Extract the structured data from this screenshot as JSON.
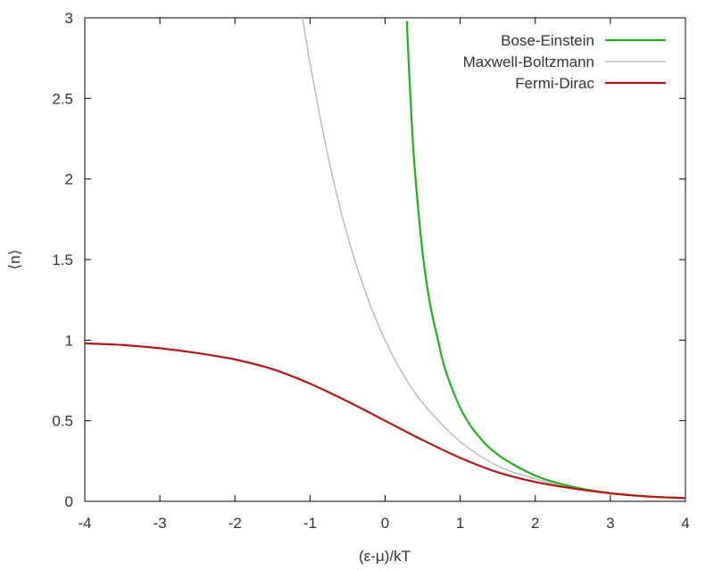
{
  "chart_data": {
    "type": "line",
    "title": "",
    "xlabel": "(ε-μ)/kT",
    "ylabel": "⟨n⟩",
    "xlim": [
      -4,
      4
    ],
    "ylim": [
      0,
      3
    ],
    "x_ticks": [
      -4,
      -3,
      -2,
      -1,
      0,
      1,
      2,
      3,
      4
    ],
    "y_ticks": [
      0,
      0.5,
      1,
      1.5,
      2,
      2.5,
      3
    ],
    "x_tick_labels": [
      "-4",
      "-3",
      "-2",
      "-1",
      "0",
      "1",
      "2",
      "3",
      "4"
    ],
    "y_tick_labels": [
      "0",
      "0.5",
      "1",
      "1.5",
      "2",
      "2.5",
      "3"
    ],
    "grid": false,
    "legend_position": "top-right",
    "series": [
      {
        "name": "Bose-Einstein",
        "color": "#22b020",
        "x": [
          0.29,
          0.3,
          0.35,
          0.4,
          0.5,
          0.6,
          0.7,
          0.8,
          1.0,
          1.2,
          1.5,
          2.0,
          2.5,
          3.0,
          3.5,
          4.0
        ],
        "y": [
          2.98,
          2.86,
          2.39,
          2.03,
          1.54,
          1.22,
          1.01,
          0.82,
          0.58,
          0.43,
          0.29,
          0.16,
          0.09,
          0.05,
          0.03,
          0.02
        ]
      },
      {
        "name": "Maxwell-Boltzmann",
        "color": "#b4b4b4",
        "x": [
          -1.1,
          -1.0,
          -0.8,
          -0.6,
          -0.4,
          -0.2,
          0.0,
          0.2,
          0.5,
          1.0,
          1.5,
          2.0,
          2.5,
          3.0,
          3.5,
          4.0
        ],
        "y": [
          3.0,
          2.72,
          2.23,
          1.82,
          1.49,
          1.22,
          1.0,
          0.82,
          0.61,
          0.37,
          0.22,
          0.14,
          0.08,
          0.05,
          0.03,
          0.02
        ]
      },
      {
        "name": "Fermi-Dirac",
        "color": "#b01818",
        "x": [
          -4.0,
          -3.5,
          -3.0,
          -2.5,
          -2.0,
          -1.5,
          -1.0,
          -0.5,
          0.0,
          0.5,
          1.0,
          1.5,
          2.0,
          2.5,
          3.0,
          3.5,
          4.0
        ],
        "y": [
          0.98,
          0.97,
          0.95,
          0.92,
          0.88,
          0.82,
          0.73,
          0.62,
          0.5,
          0.38,
          0.27,
          0.18,
          0.12,
          0.08,
          0.05,
          0.03,
          0.02
        ]
      }
    ]
  }
}
